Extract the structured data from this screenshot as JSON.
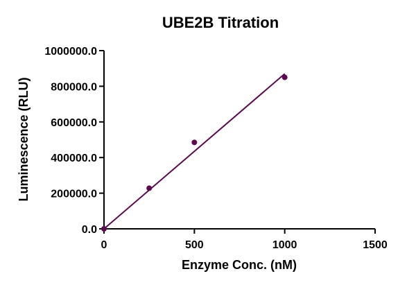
{
  "chart_data": {
    "type": "scatter",
    "title": "UBE2B Titration",
    "xlabel": "Enzyme Conc. (nM)",
    "ylabel": "Luminescence (RLU)",
    "xlim": [
      0,
      1500
    ],
    "ylim": [
      0,
      1000000
    ],
    "xticks": [
      0,
      500,
      1000,
      1500
    ],
    "xtick_labels": [
      "0",
      "500",
      "1000",
      "1500"
    ],
    "yticks": [
      0,
      200000,
      400000,
      600000,
      800000,
      1000000
    ],
    "ytick_labels": [
      "0.0",
      "200000.0",
      "400000.0",
      "600000.0",
      "800000.0",
      "1000000.0"
    ],
    "grid": false,
    "color": "#5a0a4e",
    "series": [
      {
        "points": [
          {
            "x": 0,
            "y": 0
          },
          {
            "x": 250,
            "y": 228000
          },
          {
            "x": 500,
            "y": 485000
          },
          {
            "x": 1000,
            "y": 850000
          }
        ],
        "fit_line": {
          "x": [
            0,
            1000
          ],
          "y": [
            0,
            870000
          ]
        }
      }
    ]
  }
}
